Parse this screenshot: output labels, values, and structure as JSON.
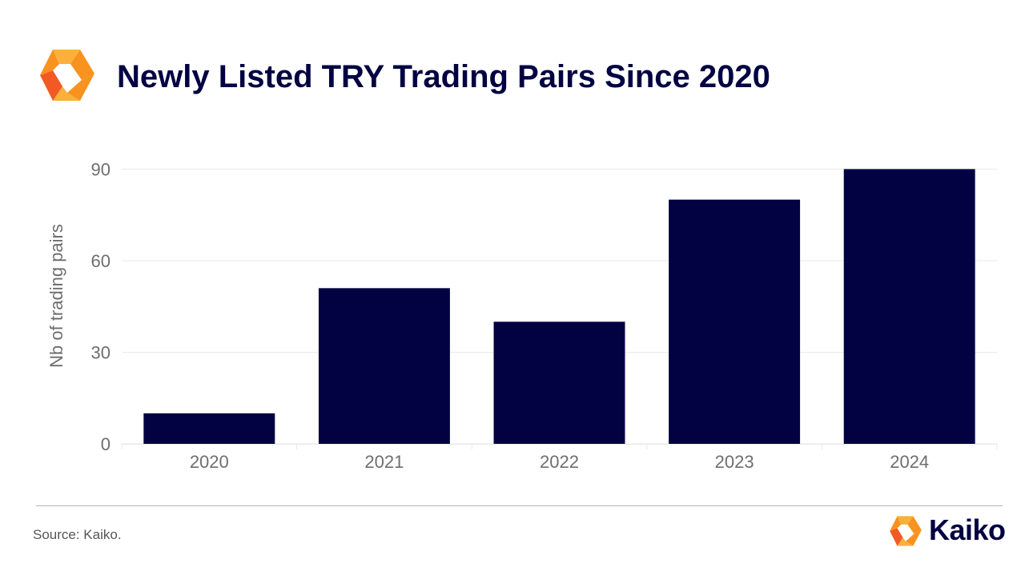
{
  "header": {
    "title": "Newly Listed TRY Trading Pairs Since 2020",
    "logo_icon": "kaiko-logo-icon"
  },
  "footer": {
    "source": "Source: Kaiko.",
    "brand_name": "Kaiko",
    "brand_icon": "kaiko-logo-icon"
  },
  "colors": {
    "bar": "#020242",
    "title": "#020242",
    "logo_orange": "#f7931e",
    "logo_yellow": "#fbb03b",
    "logo_dark_orange": "#f15a24",
    "grid": "#e9e9e9",
    "tick": "#6e6e6e"
  },
  "chart_data": {
    "type": "bar",
    "title": "Newly Listed TRY Trading Pairs Since 2020",
    "xlabel": "",
    "ylabel": "Nb of trading pairs",
    "categories": [
      "2020",
      "2021",
      "2022",
      "2023",
      "2024"
    ],
    "values": [
      10,
      51,
      40,
      80,
      90
    ],
    "ylim": [
      0,
      93
    ],
    "yticks": [
      0,
      30,
      60,
      90
    ],
    "grid": true,
    "legend": "none"
  }
}
